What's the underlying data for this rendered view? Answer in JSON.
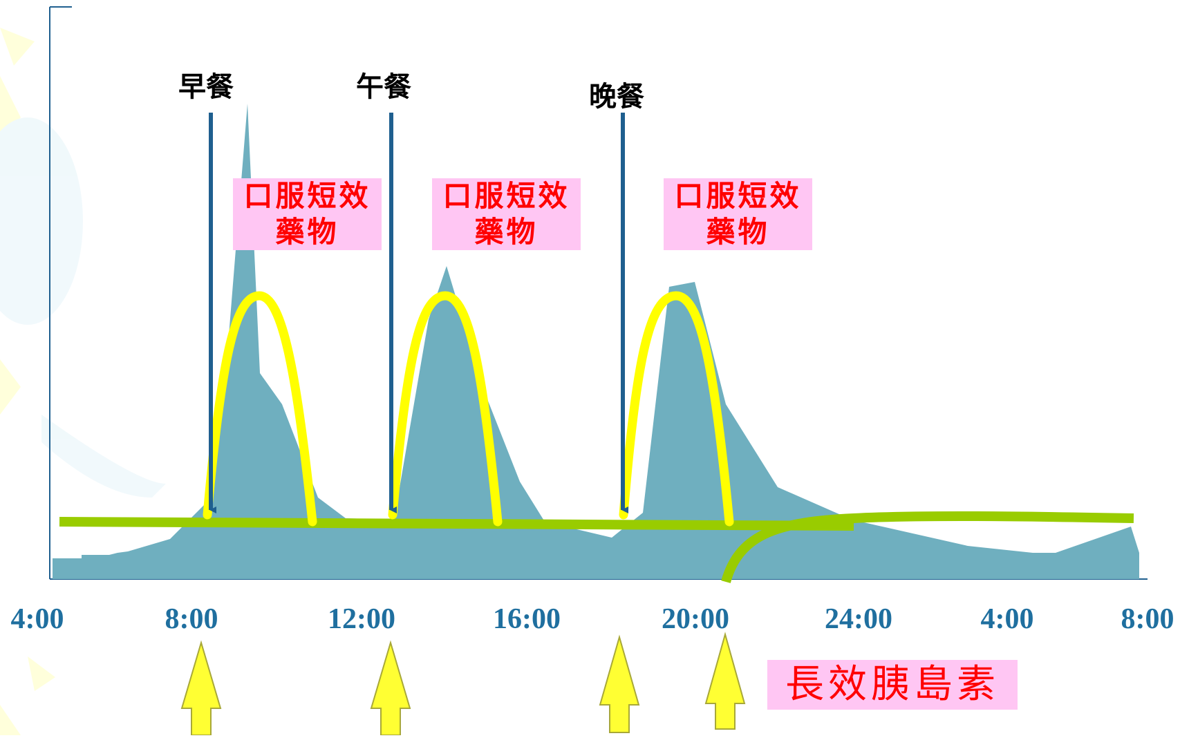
{
  "meals": [
    {
      "label": "早餐"
    },
    {
      "label": "午餐"
    },
    {
      "label": "晚餐"
    }
  ],
  "drug_label": {
    "line1": "口服短效",
    "line2": "藥物"
  },
  "x_ticks": [
    "4:00",
    "8:00",
    "12:00",
    "16:00",
    "20:00",
    "24:00",
    "4:00",
    "8:00"
  ],
  "long_acting_label": "長效胰島素",
  "colors": {
    "insulin_area": "#6fafbf",
    "oral_drug_curve": "#ffff00",
    "long_acting_curve": "#99cc00",
    "meal_arrow": "#1f5f8f",
    "tick_label": "#1f6f9f",
    "injection_arrow_fill": "#ffff33",
    "injection_arrow_stroke": "#a8a838",
    "label_box": "#ffc6f3",
    "label_text": "#ff0000"
  }
}
